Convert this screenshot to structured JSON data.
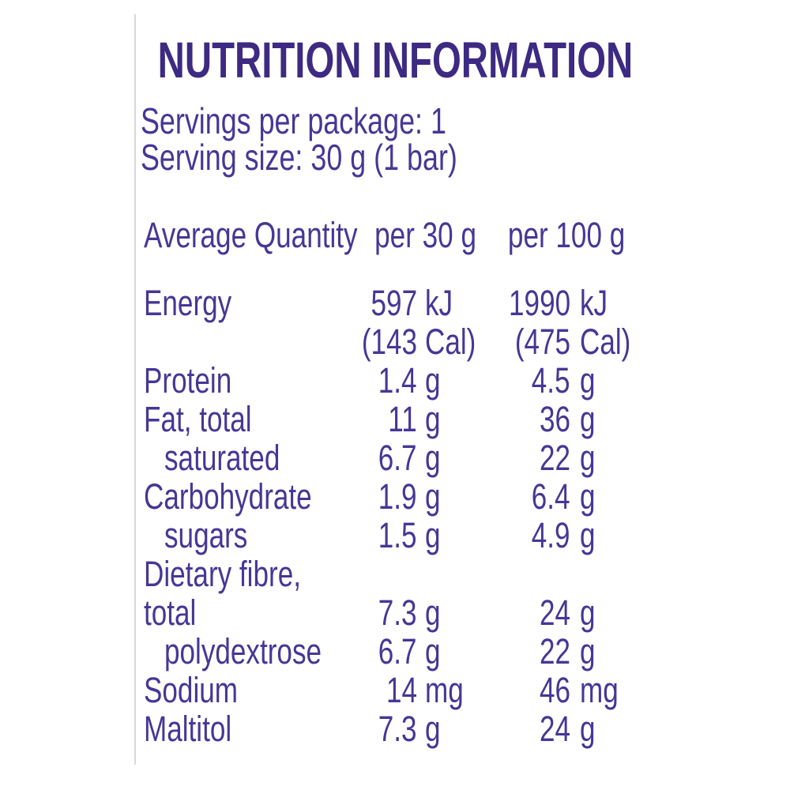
{
  "colors": {
    "title_text": "#3d2a82",
    "body_text": "#463795",
    "edge_line": "#d8d8d8",
    "background": "#ffffff"
  },
  "title": "NUTRITION INFORMATION",
  "serving_info": {
    "servings_per_package": "Servings per package: 1",
    "serving_size": "Serving size: 30 g (1 bar)"
  },
  "table": {
    "header": {
      "label": "Average Quantity",
      "per_30g": "per 30 g",
      "per_100g": "per 100 g"
    },
    "rows": [
      {
        "label": "Energy",
        "indent": false,
        "lines": [
          {
            "per_30g_value": "597",
            "per_30g_unit": "kJ",
            "per_100g_value": "1990",
            "per_100g_unit": "kJ"
          },
          {
            "per_30g_value": "(143",
            "per_30g_unit": "Cal)",
            "per_100g_value": "(475",
            "per_100g_unit": "Cal)"
          }
        ]
      },
      {
        "label": "Protein",
        "indent": false,
        "lines": [
          {
            "per_30g_value": "1.4",
            "per_30g_unit": "g",
            "per_100g_value": "4.5",
            "per_100g_unit": "g"
          }
        ]
      },
      {
        "label": "Fat, total",
        "indent": false,
        "lines": [
          {
            "per_30g_value": "11",
            "per_30g_unit": "g",
            "per_100g_value": "36",
            "per_100g_unit": "g"
          }
        ]
      },
      {
        "label": "saturated",
        "indent": true,
        "lines": [
          {
            "per_30g_value": "6.7",
            "per_30g_unit": "g",
            "per_100g_value": "22",
            "per_100g_unit": "g"
          }
        ]
      },
      {
        "label": "Carbohydrate",
        "indent": false,
        "lines": [
          {
            "per_30g_value": "1.9",
            "per_30g_unit": "g",
            "per_100g_value": "6.4",
            "per_100g_unit": "g"
          }
        ]
      },
      {
        "label": "sugars",
        "indent": true,
        "lines": [
          {
            "per_30g_value": "1.5",
            "per_30g_unit": "g",
            "per_100g_value": "4.9",
            "per_100g_unit": "g"
          }
        ]
      },
      {
        "label": "Dietary fibre,",
        "indent": false,
        "lines": []
      },
      {
        "label": "total",
        "indent": false,
        "lines": [
          {
            "per_30g_value": "7.3",
            "per_30g_unit": "g",
            "per_100g_value": "24",
            "per_100g_unit": "g"
          }
        ]
      },
      {
        "label": "polydextrose",
        "indent": true,
        "lines": [
          {
            "per_30g_value": "6.7",
            "per_30g_unit": "g",
            "per_100g_value": "22",
            "per_100g_unit": "g"
          }
        ]
      },
      {
        "label": "Sodium",
        "indent": false,
        "lines": [
          {
            "per_30g_value": "14",
            "per_30g_unit": "mg",
            "per_100g_value": "46",
            "per_100g_unit": "mg"
          }
        ]
      },
      {
        "label": "Maltitol",
        "indent": false,
        "lines": [
          {
            "per_30g_value": "7.3",
            "per_30g_unit": "g",
            "per_100g_value": "24",
            "per_100g_unit": "g"
          }
        ]
      }
    ]
  }
}
